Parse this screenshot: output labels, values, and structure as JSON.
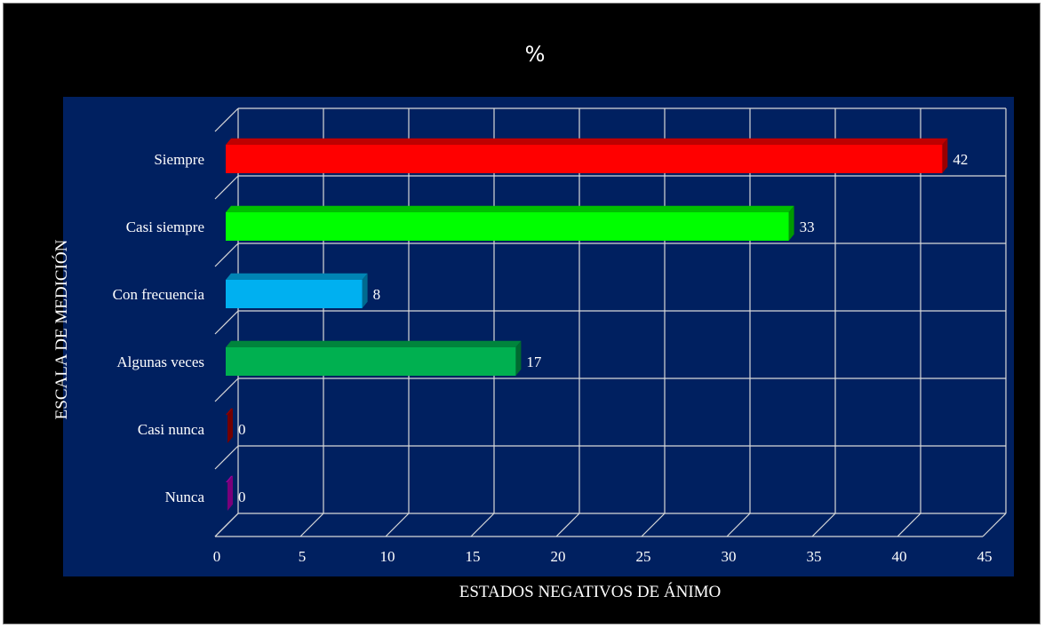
{
  "chart_data": {
    "type": "bar",
    "orientation": "horizontal",
    "title": "%",
    "xlabel": "ESTADOS NEGATIVOS DE ÁNIMO",
    "ylabel": "ESCALA DE MEDICIÓN",
    "categories": [
      "Siempre",
      "Casi siempre",
      "Con frecuencia",
      "Algunas veces",
      "Casi nunca",
      "Nunca"
    ],
    "values": [
      42,
      33,
      8,
      17,
      0,
      0
    ],
    "data_labels": [
      "42",
      "33",
      "8",
      "17",
      "0",
      "0"
    ],
    "colors": [
      "#ff0000",
      "#00ff00",
      "#00b0f0",
      "#00b050",
      "#c00000",
      "#cc00cc"
    ],
    "xlim": [
      0,
      45
    ],
    "x_ticks": [
      "0",
      "5",
      "10",
      "15",
      "20",
      "25",
      "30",
      "35",
      "40",
      "45"
    ],
    "grid": true,
    "legend": "none",
    "plot_background": "#002060",
    "outer_background": "#000000",
    "style": "3d"
  }
}
